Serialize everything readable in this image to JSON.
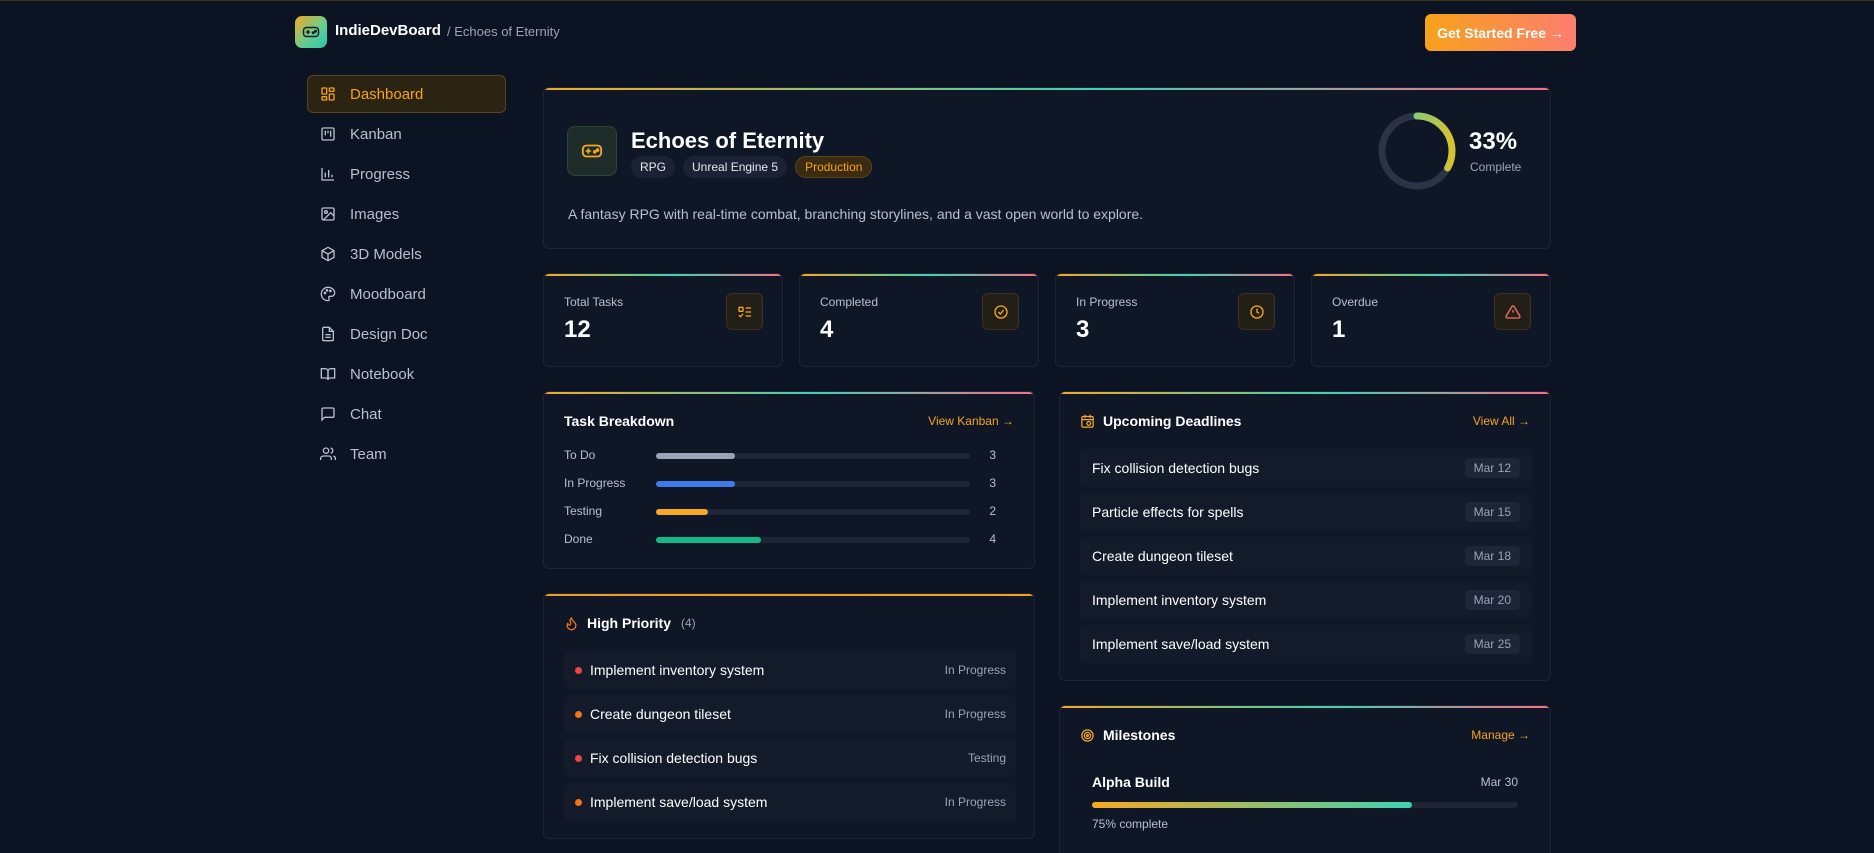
{
  "header": {
    "brand": "IndieDevBoard",
    "breadcrumb": "/ Echoes of Eternity",
    "cta_label": "Get Started Free →"
  },
  "sidebar": {
    "items": [
      {
        "label": "Dashboard",
        "icon": "dashboard-icon",
        "active": true
      },
      {
        "label": "Kanban",
        "icon": "kanban-icon"
      },
      {
        "label": "Progress",
        "icon": "bar-chart-icon"
      },
      {
        "label": "Images",
        "icon": "image-icon"
      },
      {
        "label": "3D Models",
        "icon": "cube-icon"
      },
      {
        "label": "Moodboard",
        "icon": "palette-icon"
      },
      {
        "label": "Design Doc",
        "icon": "document-icon"
      },
      {
        "label": "Notebook",
        "icon": "book-icon"
      },
      {
        "label": "Chat",
        "icon": "chat-icon"
      },
      {
        "label": "Team",
        "icon": "users-icon"
      }
    ]
  },
  "project": {
    "title": "Echoes of Eternity",
    "tags": [
      "RPG",
      "Unreal Engine 5",
      "Production"
    ],
    "description": "A fantasy RPG with real-time combat, branching storylines, and a vast open world to explore.",
    "percent_text": "33%",
    "percent_value": 33,
    "percent_label": "Complete"
  },
  "stats": [
    {
      "label": "Total Tasks",
      "value": "12",
      "icon": "checklist-icon"
    },
    {
      "label": "Completed",
      "value": "4",
      "icon": "check-circle-icon"
    },
    {
      "label": "In Progress",
      "value": "3",
      "icon": "clock-icon"
    },
    {
      "label": "Overdue",
      "value": "1",
      "icon": "warning-icon"
    }
  ],
  "breakdown": {
    "title": "Task Breakdown",
    "link": "View Kanban →",
    "rows": [
      {
        "label": "To Do",
        "count": "3",
        "fraction": 0.25,
        "color": "#9aa4b6"
      },
      {
        "label": "In Progress",
        "count": "3",
        "fraction": 0.25,
        "color": "#3f7be8"
      },
      {
        "label": "Testing",
        "count": "2",
        "fraction": 0.167,
        "color": "#f6a823"
      },
      {
        "label": "Done",
        "count": "4",
        "fraction": 0.333,
        "color": "#12b886"
      }
    ]
  },
  "priority": {
    "title": "High Priority",
    "count": "(4)",
    "rows": [
      {
        "title": "Implement inventory system",
        "status": "In Progress",
        "dot": "#ef4444"
      },
      {
        "title": "Create dungeon tileset",
        "status": "In Progress",
        "dot": "#f97316"
      },
      {
        "title": "Fix collision detection bugs",
        "status": "Testing",
        "dot": "#ef4444"
      },
      {
        "title": "Implement save/load system",
        "status": "In Progress",
        "dot": "#f97316"
      }
    ]
  },
  "deadlines": {
    "title": "Upcoming Deadlines",
    "link": "View All →",
    "rows": [
      {
        "title": "Fix collision detection bugs",
        "date": "Mar 12"
      },
      {
        "title": "Particle effects for spells",
        "date": "Mar 15"
      },
      {
        "title": "Create dungeon tileset",
        "date": "Mar 18"
      },
      {
        "title": "Implement inventory system",
        "date": "Mar 20"
      },
      {
        "title": "Implement save/load system",
        "date": "Mar 25"
      }
    ]
  },
  "milestones": {
    "title": "Milestones",
    "link": "Manage →",
    "items": [
      {
        "name": "Alpha Build",
        "date": "Mar 30",
        "fraction": 0.75,
        "pct_text": "75% complete"
      }
    ]
  },
  "colors": {
    "accent": "#f7a21b",
    "background": "#0c1322",
    "card": "#0f1727"
  }
}
